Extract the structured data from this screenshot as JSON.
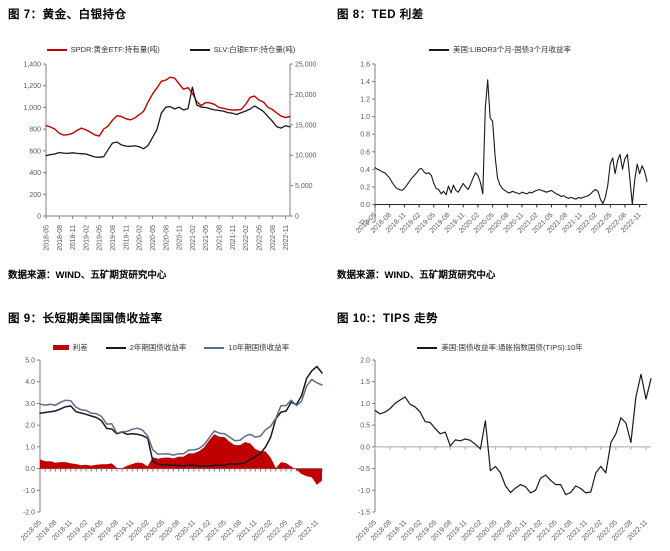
{
  "source_notes": {
    "left": "数据来源：WIND、五矿期货研究中心",
    "right": "数据来源：WIND、五矿期货研究中心"
  },
  "colors": {
    "red": "#c00000",
    "black": "#1a1a1a",
    "slate": "#5a6e87",
    "axis_gray": "#808080",
    "tick_label_gray": "#595959"
  },
  "x_axis_labels": [
    "2018-05",
    "2018-08",
    "2018-11",
    "2019-02",
    "2019-05",
    "2019-08",
    "2019-11",
    "2020-02",
    "2020-05",
    "2020-08",
    "2020-11",
    "2021-02",
    "2021-05",
    "2021-08",
    "2021-11",
    "2022-02",
    "2022-05",
    "2022-08",
    "2022-11"
  ],
  "chart_data": [
    {
      "type": "line",
      "title": "图 7：黄金、白银持仓",
      "legend": [
        {
          "label": "SPDR:黄金ETF:持有量(吨)",
          "color": "#c00000"
        },
        {
          "label": "SLV:白银ETF:持仓量(吨)",
          "color": "#1a1a1a"
        }
      ],
      "ylim": [
        0,
        1400
      ],
      "ytick_values": [
        1400,
        1200,
        1000,
        800,
        600,
        400,
        200,
        0
      ],
      "ytick_labels": [
        "1,400",
        "1,200",
        "1,000",
        "800",
        "600",
        "400",
        "200",
        "0"
      ],
      "right_ylim": [
        0,
        25000
      ],
      "right_ytick_values": [
        25000,
        20000,
        15000,
        10000,
        5000,
        0
      ],
      "right_ytick_labels": [
        "25,000",
        "20,000",
        "15,000",
        "10,000",
        "5,000",
        "0"
      ],
      "series": [
        {
          "name": "SPDR黄金ETF持有量",
          "axis": "left",
          "color": "#c00000",
          "values": [
            833,
            820,
            800,
            762,
            745,
            749,
            762,
            788,
            810,
            794,
            772,
            747,
            736,
            800,
            828,
            882,
            924,
            916,
            896,
            886,
            902,
            933,
            964,
            1048,
            1123,
            1178,
            1241,
            1252,
            1278,
            1269,
            1218,
            1168,
            1182,
            1130,
            1052,
            1018,
            1045,
            1042,
            1028,
            1000,
            992,
            982,
            976,
            976,
            982,
            1028,
            1092,
            1104,
            1068,
            1050,
            1002,
            982,
            950,
            920,
            906,
            917
          ]
        },
        {
          "name": "SLV白银ETF持仓量",
          "axis": "right",
          "color": "#1a1a1a",
          "values": [
            9900,
            10100,
            10200,
            10450,
            10350,
            10300,
            10400,
            10300,
            10250,
            10200,
            9950,
            9700,
            9650,
            9750,
            10900,
            12000,
            12150,
            11700,
            11500,
            11450,
            11550,
            11400,
            11050,
            11600,
            12900,
            14200,
            16900,
            17900,
            18000,
            17600,
            17900,
            17450,
            17650,
            21200,
            18250,
            17900,
            17850,
            17650,
            17450,
            17350,
            17250,
            17000,
            16900,
            16700,
            17000,
            17250,
            17600,
            18100,
            17700,
            17200,
            16400,
            15600,
            14700,
            14450,
            14850,
            14650
          ]
        }
      ]
    },
    {
      "type": "line",
      "title": "图 8：TED 利差",
      "legend": [
        {
          "label": "美国:LIBOR3个月-国债3个月收益率",
          "color": "#1a1a1a"
        }
      ],
      "ylim": [
        -0.2,
        1.6
      ],
      "ytick_values": [
        1.6,
        1.4,
        1.2,
        1.0,
        0.8,
        0.6,
        0.4,
        0.2,
        0.0,
        -0.2
      ],
      "ytick_labels": [
        "1.6",
        "1.4",
        "1.2",
        "1.0",
        "0.8",
        "0.6",
        "0.4",
        "0.2",
        "0.0",
        "-0.2"
      ],
      "series": [
        {
          "name": "TED利差",
          "axis": "left",
          "color": "#1a1a1a",
          "values": [
            0.42,
            0.4,
            0.39,
            0.37,
            0.36,
            0.33,
            0.3,
            0.25,
            0.21,
            0.18,
            0.17,
            0.16,
            0.18,
            0.22,
            0.26,
            0.3,
            0.33,
            0.36,
            0.4,
            0.41,
            0.37,
            0.35,
            0.36,
            0.33,
            0.24,
            0.18,
            0.17,
            0.12,
            0.15,
            0.11,
            0.21,
            0.13,
            0.22,
            0.16,
            0.14,
            0.19,
            0.24,
            0.2,
            0.17,
            0.23,
            0.3,
            0.36,
            0.33,
            0.25,
            0.12,
            1.1,
            1.42,
            0.98,
            0.95,
            0.55,
            0.3,
            0.22,
            0.18,
            0.16,
            0.14,
            0.13,
            0.15,
            0.14,
            0.13,
            0.12,
            0.14,
            0.13,
            0.12,
            0.14,
            0.13,
            0.15,
            0.16,
            0.17,
            0.16,
            0.15,
            0.14,
            0.15,
            0.16,
            0.14,
            0.12,
            0.11,
            0.09,
            0.1,
            0.08,
            0.07,
            0.08,
            0.07,
            0.06,
            0.08,
            0.07,
            0.08,
            0.09,
            0.1,
            0.12,
            0.15,
            0.17,
            0.15,
            0.06,
            0.01,
            0.08,
            0.22,
            0.46,
            0.53,
            0.35,
            0.5,
            0.57,
            0.4,
            0.52,
            0.57,
            0.3,
            0.0,
            0.28,
            0.46,
            0.35,
            0.44,
            0.38,
            0.26
          ]
        }
      ]
    },
    {
      "type": "line",
      "title": "图 9：长短期美国国债收益率",
      "legend": [
        {
          "label": "利差",
          "color": "#c00000",
          "thick": true
        },
        {
          "label": "2年期国债收益率",
          "color": "#1a1a1a"
        },
        {
          "label": "10年期国债收益率",
          "color": "#5a6e87"
        }
      ],
      "ylim": [
        -2,
        5
      ],
      "ytick_values": [
        5,
        4,
        3,
        2,
        1,
        0,
        -1,
        -2
      ],
      "ytick_labels": [
        "5.0",
        "4.0",
        "3.0",
        "2.0",
        "1.0",
        "0.0",
        "-1.0",
        "-2.0"
      ],
      "series": [
        {
          "name": "利差",
          "style": "area",
          "axis": "left",
          "color": "#c00000",
          "values": [
            0.42,
            0.34,
            0.34,
            0.27,
            0.3,
            0.3,
            0.24,
            0.21,
            0.15,
            0.18,
            0.13,
            0.18,
            0.2,
            0.2,
            0.24,
            0.03,
            0.02,
            0.13,
            0.21,
            0.28,
            0.25,
            0.1,
            0.52,
            0.45,
            0.5,
            0.51,
            0.47,
            0.54,
            0.55,
            0.7,
            0.7,
            0.8,
            0.97,
            1.3,
            1.58,
            1.47,
            1.45,
            1.23,
            1.08,
            1.08,
            1.22,
            1.16,
            0.9,
            0.8,
            0.79,
            0.5,
            0.02,
            0.3,
            0.25,
            0.1,
            -0.05,
            -0.25,
            -0.35,
            -0.4,
            -0.75,
            -0.55
          ]
        },
        {
          "name": "2年期国债收益率",
          "axis": "left",
          "color": "#1a1a1a",
          "values": [
            2.55,
            2.58,
            2.62,
            2.65,
            2.75,
            2.85,
            2.88,
            2.62,
            2.56,
            2.5,
            2.42,
            2.35,
            2.2,
            1.85,
            1.82,
            1.6,
            1.68,
            1.58,
            1.6,
            1.58,
            1.52,
            1.4,
            0.35,
            0.21,
            0.17,
            0.17,
            0.15,
            0.14,
            0.13,
            0.15,
            0.16,
            0.12,
            0.12,
            0.12,
            0.15,
            0.16,
            0.15,
            0.22,
            0.2,
            0.22,
            0.27,
            0.42,
            0.55,
            0.7,
            1.0,
            1.45,
            2.3,
            2.6,
            2.65,
            3.05,
            2.95,
            3.35,
            4.15,
            4.5,
            4.7,
            4.4
          ]
        },
        {
          "name": "10年期国债收益率",
          "axis": "left",
          "color": "#5a6e87",
          "values": [
            2.97,
            2.92,
            2.96,
            2.92,
            3.05,
            3.15,
            3.12,
            2.83,
            2.71,
            2.68,
            2.55,
            2.53,
            2.4,
            2.05,
            2.06,
            1.63,
            1.7,
            1.71,
            1.81,
            1.86,
            1.77,
            1.5,
            0.87,
            0.66,
            0.67,
            0.68,
            0.62,
            0.68,
            0.68,
            0.85,
            0.86,
            0.92,
            1.09,
            1.42,
            1.73,
            1.63,
            1.6,
            1.45,
            1.28,
            1.3,
            1.49,
            1.58,
            1.45,
            1.5,
            1.79,
            1.95,
            2.32,
            2.9,
            2.9,
            3.15,
            2.9,
            3.1,
            3.8,
            4.1,
            3.95,
            3.85
          ]
        }
      ]
    },
    {
      "type": "line",
      "title": "图 10:：TIPS 走势",
      "legend": [
        {
          "label": "美国:国债收益率:通胀指数国债(TIPS):10年",
          "color": "#1a1a1a"
        }
      ],
      "ylim": [
        -1.5,
        2
      ],
      "ytick_values": [
        2,
        1.5,
        1,
        0.5,
        0,
        -0.5,
        -1,
        -1.5
      ],
      "ytick_labels": [
        "2.0",
        "1.5",
        "1.0",
        "0.5",
        "0.0",
        "-0.5",
        "-1.0",
        "-1.5"
      ],
      "series": [
        {
          "name": "美国10年期TIPS收益率",
          "axis": "left",
          "color": "#1a1a1a",
          "values": [
            0.84,
            0.76,
            0.8,
            0.88,
            1.0,
            1.08,
            1.15,
            0.98,
            0.92,
            0.8,
            0.58,
            0.56,
            0.42,
            0.3,
            0.34,
            0.02,
            0.16,
            0.14,
            0.18,
            0.15,
            0.06,
            -0.05,
            0.6,
            -0.55,
            -0.45,
            -0.6,
            -0.9,
            -1.05,
            -0.95,
            -0.87,
            -0.92,
            -1.06,
            -1.0,
            -0.72,
            -0.65,
            -0.77,
            -0.87,
            -0.87,
            -1.1,
            -1.05,
            -0.9,
            -0.96,
            -1.06,
            -1.04,
            -0.6,
            -0.45,
            -0.6,
            0.1,
            0.3,
            0.67,
            0.55,
            0.1,
            1.15,
            1.67,
            1.1,
            1.57
          ]
        }
      ]
    }
  ]
}
